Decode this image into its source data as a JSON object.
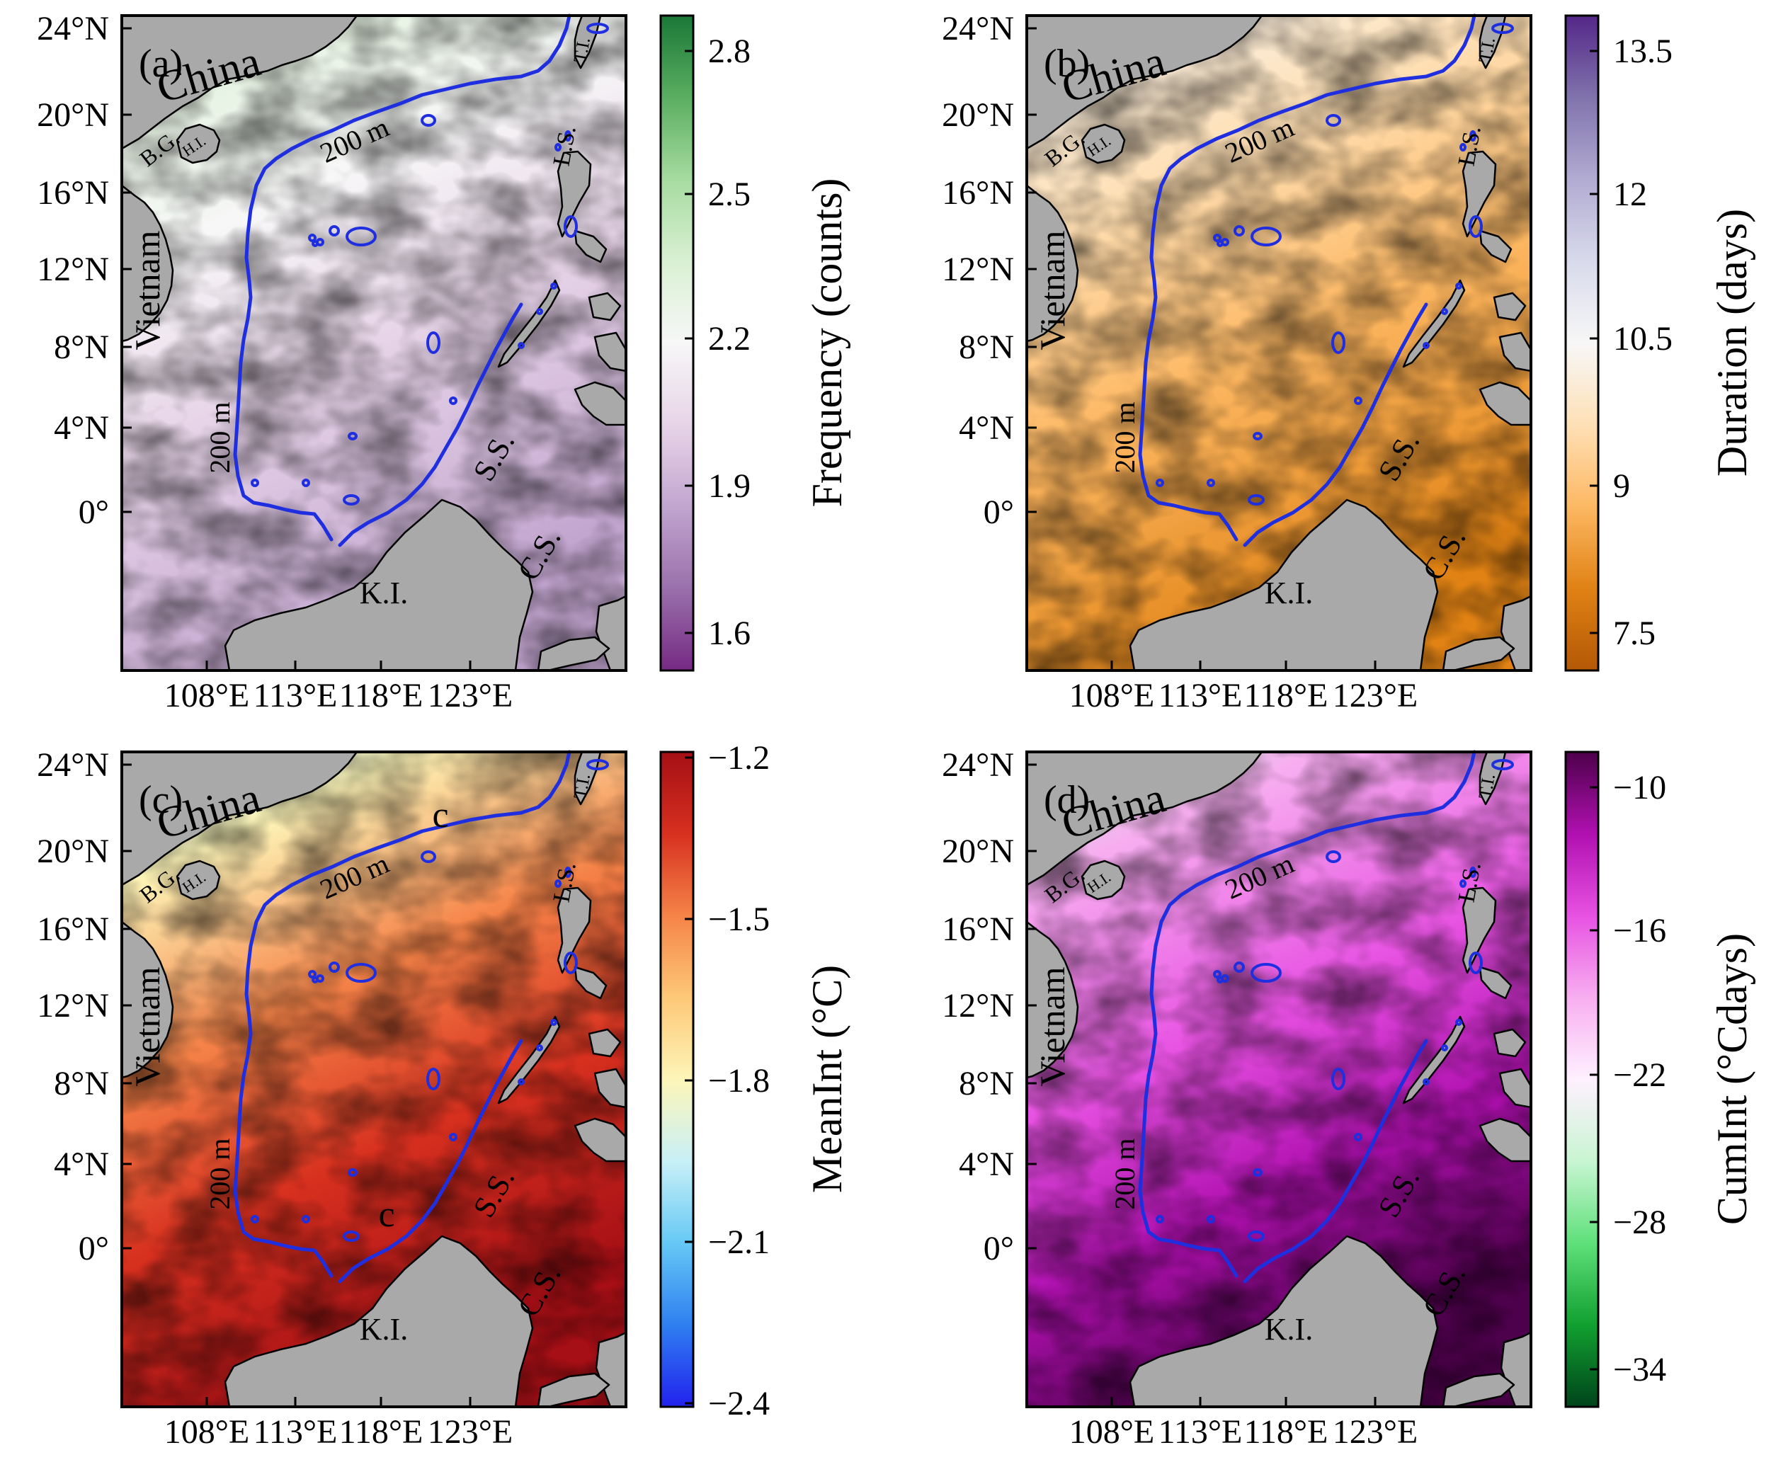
{
  "figure": {
    "lat_ticks": [
      "24°N",
      "20°N",
      "16°N",
      "12°N",
      "8°N",
      "4°N",
      "0°"
    ],
    "lon_ticks": [
      "108°E",
      "113°E",
      "118°E",
      "123°E"
    ],
    "place_labels": {
      "china": "China",
      "vietnam": "Vietnam",
      "bg": "B.G.",
      "hi": "H.I.",
      "ti": "T.I.",
      "ls": "L.S.",
      "ss": "S.S.",
      "cs": "C.S.",
      "ki": "K.I."
    },
    "isobath_label": "200 m",
    "colors": {
      "land": "#a9a9a9",
      "isobath": "#1f2fe0",
      "frame": "#000000"
    }
  },
  "panels": [
    {
      "id": "a",
      "label": "(a)",
      "colorbar_title": "Frequency (counts)",
      "colorbar_ticks": [
        "2.8",
        "2.5",
        "2.2",
        "1.9",
        "1.6"
      ],
      "colormap": [
        "#762a83",
        "#9970ab",
        "#c2a5cf",
        "#e7d4e8",
        "#f7f7f7",
        "#d9f0d3",
        "#a6dba0",
        "#5aae61",
        "#1b7837"
      ],
      "markers": []
    },
    {
      "id": "b",
      "label": "(b)",
      "colorbar_title": "Duration (days)",
      "colorbar_ticks": [
        "13.5",
        "12",
        "10.5",
        "9",
        "7.5"
      ],
      "colormap": [
        "#b35806",
        "#e08214",
        "#fdb863",
        "#fee0b6",
        "#f7f7f7",
        "#d8daeb",
        "#b2abd2",
        "#8073ac",
        "#542788"
      ],
      "markers": []
    },
    {
      "id": "c",
      "label": "(c)",
      "colorbar_title": "MeanInt (°C)",
      "colorbar_ticks": [
        "−1.2",
        "−1.5",
        "−1.8",
        "−2.1",
        "−2.4"
      ],
      "colormap": [
        "#2222ee",
        "#2f7ff0",
        "#66c8f5",
        "#c8f0f7",
        "#fdf5b8",
        "#fdc877",
        "#f58348",
        "#d7301f",
        "#a50f15"
      ],
      "markers": [
        "c",
        "c"
      ]
    },
    {
      "id": "d",
      "label": "(d)",
      "colorbar_title": "CumInt (°Cdays)",
      "colorbar_ticks": [
        "−10",
        "−16",
        "−22",
        "−28",
        "−34"
      ],
      "colormap": [
        "#00441b",
        "#11a030",
        "#5fe07a",
        "#c8f5d2",
        "#fff0ff",
        "#f7aef0",
        "#e752e2",
        "#b010b0",
        "#4d004b"
      ],
      "markers": []
    }
  ]
}
